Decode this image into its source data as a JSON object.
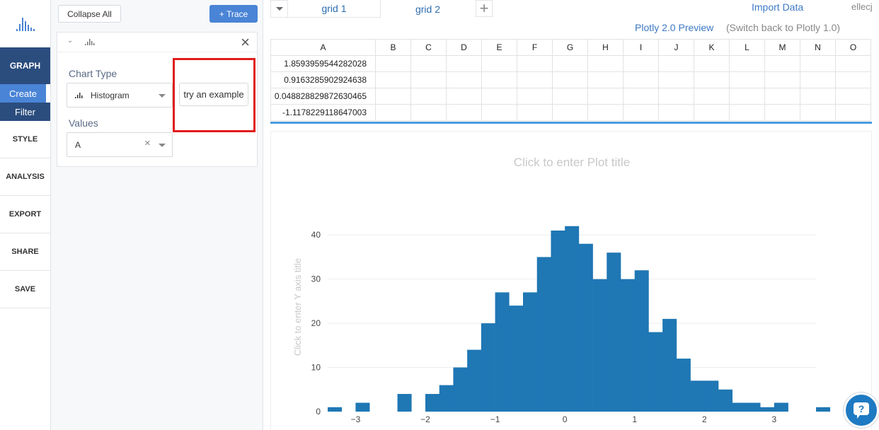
{
  "nav": {
    "graph": "GRAPH",
    "create": "Create",
    "filter": "Filter",
    "items": [
      "STYLE",
      "ANALYSIS",
      "EXPORT",
      "SHARE",
      "SAVE"
    ]
  },
  "panel": {
    "collapse_label": "Collapse All",
    "trace_label": "+ Trace",
    "chart_type_label": "Chart Type",
    "chart_type_value": "Histogram",
    "values_label": "Values",
    "values_value": "A",
    "example_label": "try an example"
  },
  "tabs": {
    "grid1": "grid 1",
    "grid2": "grid 2",
    "import": "Import Data",
    "user": "ellecj",
    "preview": "Plotly 2.0 Preview",
    "switchback": "(Switch back to Plotly 1.0)"
  },
  "grid": {
    "columns": [
      "A",
      "B",
      "C",
      "D",
      "E",
      "F",
      "G",
      "H",
      "I",
      "J",
      "K",
      "L",
      "M",
      "N",
      "O"
    ],
    "rows": [
      "1.8593959544282028",
      "0.9163285902924638",
      "0.048828829872630465",
      "-1.1178229118647003"
    ]
  },
  "colors": {
    "accent": "#4a84d6",
    "nav_dark": "#2b4d7e",
    "bar": "#1f77b4",
    "highlight": "#e01c1c"
  },
  "chart_data": {
    "type": "histogram",
    "title": "Click to enter Plot title",
    "ylabel": "Click to enter Y axis title",
    "xlim": [
      -3.4,
      3.6
    ],
    "ylim": [
      0,
      45
    ],
    "bin_start": -3.4,
    "bin_width": 0.2,
    "counts": [
      1,
      0,
      2,
      0,
      0,
      4,
      0,
      4,
      6,
      10,
      14,
      20,
      27,
      24,
      27,
      35,
      41,
      42,
      38,
      30,
      36,
      30,
      32,
      18,
      21,
      12,
      7,
      7,
      5,
      2,
      2,
      1,
      2,
      0,
      0,
      1
    ],
    "x_ticks": [
      -3,
      -2,
      -1,
      0,
      1,
      2,
      3
    ],
    "x_tick_labels": [
      "−3",
      "−2",
      "−1",
      "0",
      "1",
      "2",
      "3"
    ],
    "y_ticks": [
      0,
      10,
      20,
      30,
      40
    ]
  }
}
